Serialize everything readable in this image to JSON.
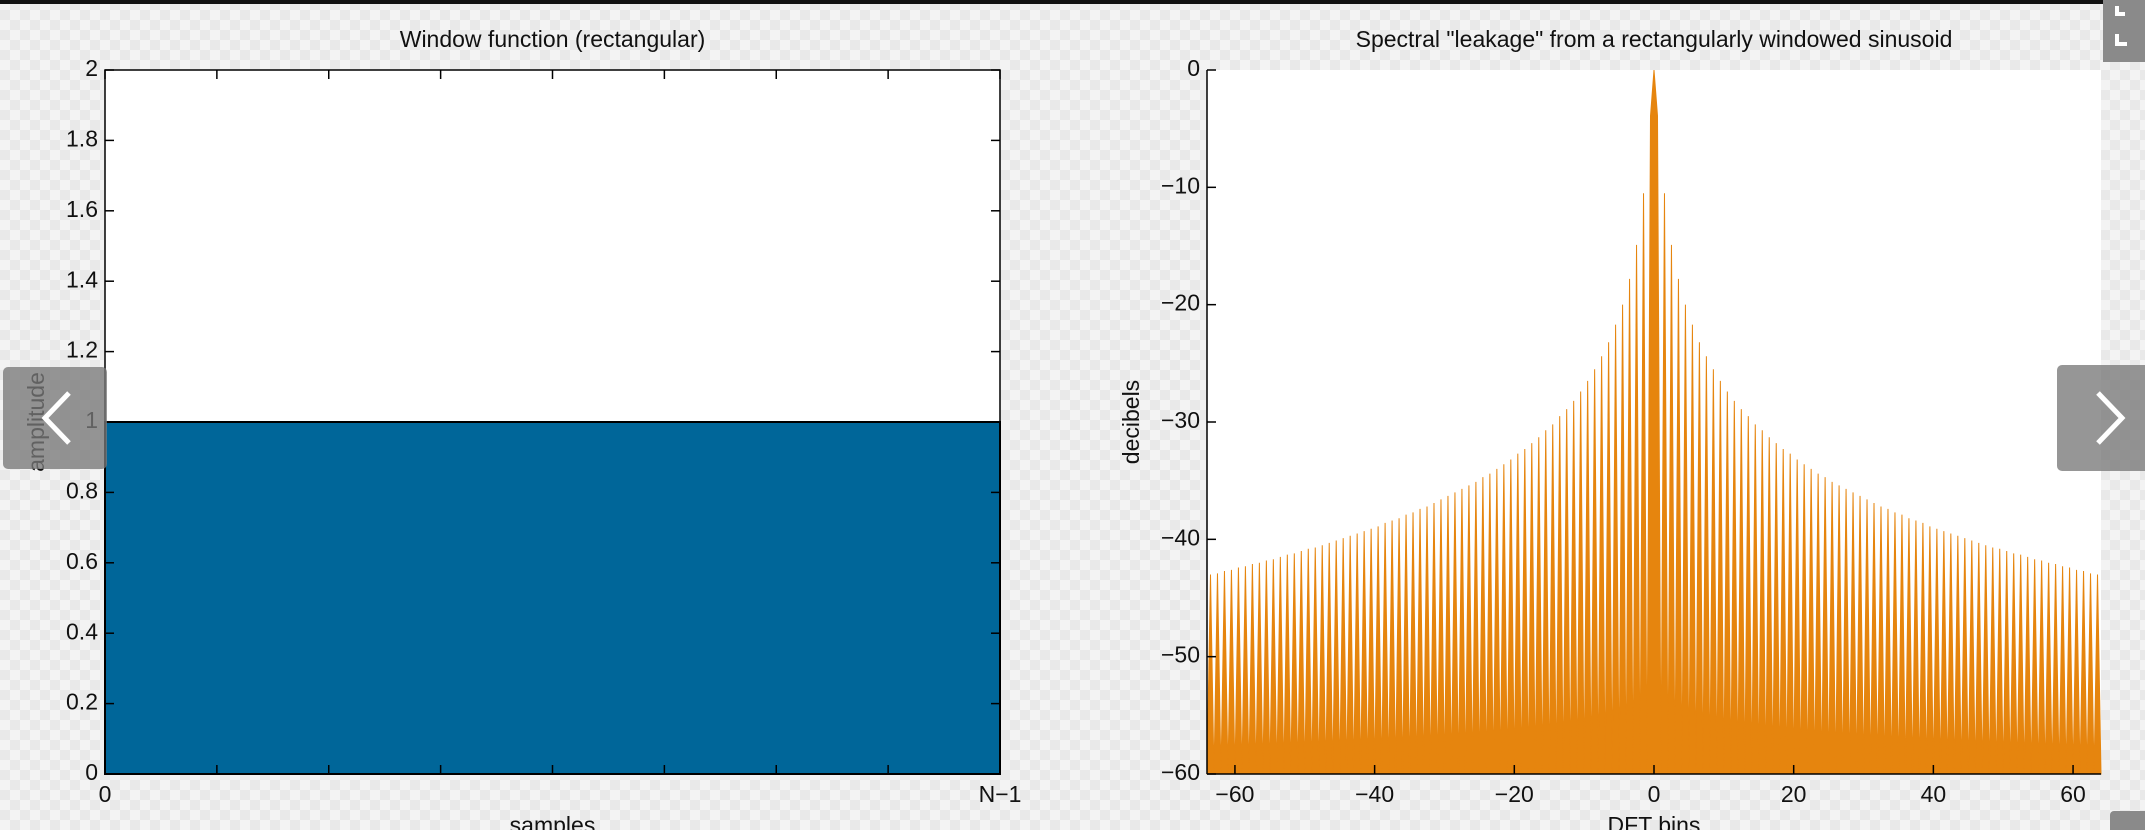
{
  "chart_data": [
    {
      "type": "area",
      "title": "Window function (rectangular)",
      "xlabel": "samples",
      "ylabel": "amplitude",
      "categories": [
        "0",
        null,
        null,
        null,
        null,
        null,
        null,
        null,
        "N−1"
      ],
      "values": [
        1,
        1,
        1,
        1,
        1,
        1,
        1,
        1,
        1
      ],
      "color": "#006699",
      "edgecolor": "#000000",
      "box": true,
      "ylim": [
        0,
        2
      ],
      "yticks": [
        0,
        0.2,
        0.4,
        0.6,
        0.8,
        1,
        1.2,
        1.4,
        1.6,
        1.8,
        2
      ]
    },
    {
      "type": "area",
      "title": "Spectral \"leakage\" from a rectangularly windowed sinusoid",
      "xlabel": "DFT bins",
      "ylabel": "decibels",
      "x": [
        -64,
        -63.5,
        -63,
        -62.5,
        -62,
        -61.5,
        -61,
        -60.5,
        -60,
        -59.5,
        -59,
        -58.5,
        -58,
        -57.5,
        -57,
        -56.5,
        -56,
        -55.5,
        -55,
        -54.5,
        -54,
        -53.5,
        -53,
        -52.5,
        -52,
        -51.5,
        -51,
        -50.5,
        -50,
        -49.5,
        -49,
        -48.5,
        -48,
        -47.5,
        -47,
        -46.5,
        -46,
        -45.5,
        -45,
        -44.5,
        -44,
        -43.5,
        -43,
        -42.5,
        -42,
        -41.5,
        -41,
        -40.5,
        -40,
        -39.5,
        -39,
        -38.5,
        -38,
        -37.5,
        -37,
        -36.5,
        -36,
        -35.5,
        -35,
        -34.5,
        -34,
        -33.5,
        -33,
        -32.5,
        -32,
        -31.5,
        -31,
        -30.5,
        -30,
        -29.5,
        -29,
        -28.5,
        -28,
        -27.5,
        -27,
        -26.5,
        -26,
        -25.5,
        -25,
        -24.5,
        -24,
        -23.5,
        -23,
        -22.5,
        -22,
        -21.5,
        -21,
        -20.5,
        -20,
        -19.5,
        -19,
        -18.5,
        -18,
        -17.5,
        -17,
        -16.5,
        -16,
        -15.5,
        -15,
        -14.5,
        -14,
        -13.5,
        -13,
        -12.5,
        -12,
        -11.5,
        -11,
        -10.5,
        -10,
        -9.5,
        -9,
        -8.5,
        -8,
        -7.5,
        -7,
        -6.5,
        -6,
        -5.5,
        -5,
        -4.5,
        -4,
        -3.5,
        -3,
        -2.5,
        -2,
        -1.5,
        -1,
        -0.5,
        0,
        0.5,
        1,
        1.5,
        2,
        2.5,
        3,
        3.5,
        4,
        4.5,
        5,
        5.5,
        6,
        6.5,
        7,
        7.5,
        8,
        8.5,
        9,
        9.5,
        10,
        10.5,
        11,
        11.5,
        12,
        12.5,
        13,
        13.5,
        14,
        14.5,
        15,
        15.5,
        16,
        16.5,
        17,
        17.5,
        18,
        18.5,
        19,
        19.5,
        20,
        20.5,
        21,
        21.5,
        22,
        22.5,
        23,
        23.5,
        24,
        24.5,
        25,
        25.5,
        26,
        26.5,
        27,
        27.5,
        28,
        28.5,
        29,
        29.5,
        30,
        30.5,
        31,
        31.5,
        32,
        32.5,
        33,
        33.5,
        34,
        34.5,
        35,
        35.5,
        36,
        36.5,
        37,
        37.5,
        38,
        38.5,
        39,
        39.5,
        40,
        40.5,
        41,
        41.5,
        42,
        42.5,
        43,
        43.5,
        44,
        44.5,
        45,
        45.5,
        46,
        46.5,
        47,
        47.5,
        48,
        48.5,
        49,
        49.5,
        50,
        50.5,
        51,
        51.5,
        52,
        52.5,
        53,
        53.5,
        54,
        54.5,
        55,
        55.5,
        56,
        56.5,
        57,
        57.5,
        58,
        58.5,
        59,
        59.5,
        60,
        60.5,
        61,
        61.5,
        62,
        62.5,
        63,
        63.5,
        64
      ],
      "values": [
        -60,
        -43.0,
        -60,
        -42.9,
        -60,
        -42.7,
        -60,
        -42.6,
        -60,
        -42.4,
        -60,
        -42.3,
        -60,
        -42.1,
        -60,
        -42.0,
        -60,
        -41.8,
        -60,
        -41.7,
        -60,
        -41.5,
        -60,
        -41.3,
        -60,
        -41.2,
        -60,
        -41.0,
        -60,
        -40.8,
        -60,
        -40.7,
        -60,
        -40.5,
        -60,
        -40.3,
        -60,
        -40.1,
        -60,
        -39.9,
        -60,
        -39.7,
        -60,
        -39.5,
        -60,
        -39.3,
        -60,
        -39.1,
        -60,
        -38.9,
        -60,
        -38.6,
        -60,
        -38.4,
        -60,
        -38.2,
        -60,
        -37.9,
        -60,
        -37.7,
        -60,
        -37.4,
        -60,
        -37.2,
        -60,
        -36.9,
        -60,
        -36.6,
        -60,
        -36.3,
        -60,
        -36.0,
        -60,
        -35.7,
        -60,
        -35.4,
        -60,
        -35.1,
        -60,
        -34.7,
        -60,
        -34.4,
        -60,
        -34.0,
        -60,
        -33.6,
        -60,
        -33.2,
        -60,
        -32.7,
        -60,
        -32.3,
        -60,
        -31.8,
        -60,
        -31.3,
        -60,
        -30.7,
        -60,
        -30.2,
        -60,
        -29.5,
        -60,
        -28.9,
        -60,
        -28.2,
        -60,
        -27.4,
        -60,
        -26.5,
        -60,
        -25.5,
        -60,
        -24.4,
        -60,
        -23.2,
        -60,
        -21.7,
        -60,
        -20.0,
        -60,
        -17.8,
        -60,
        -14.9,
        -60,
        -10.5,
        -60,
        -3.9,
        0,
        -3.9,
        -60,
        -10.5,
        -60,
        -14.9,
        -60,
        -17.8,
        -60,
        -20.0,
        -60,
        -21.7,
        -60,
        -23.2,
        -60,
        -24.4,
        -60,
        -25.5,
        -60,
        -26.5,
        -60,
        -27.4,
        -60,
        -28.2,
        -60,
        -28.9,
        -60,
        -29.5,
        -60,
        -30.2,
        -60,
        -30.7,
        -60,
        -31.3,
        -60,
        -31.8,
        -60,
        -32.3,
        -60,
        -32.7,
        -60,
        -33.2,
        -60,
        -33.6,
        -60,
        -34.0,
        -60,
        -34.4,
        -60,
        -34.7,
        -60,
        -35.1,
        -60,
        -35.4,
        -60,
        -35.7,
        -60,
        -36.0,
        -60,
        -36.3,
        -60,
        -36.6,
        -60,
        -36.9,
        -60,
        -37.2,
        -60,
        -37.4,
        -60,
        -37.7,
        -60,
        -37.9,
        -60,
        -38.2,
        -60,
        -38.4,
        -60,
        -38.6,
        -60,
        -38.9,
        -60,
        -39.1,
        -60,
        -39.3,
        -60,
        -39.5,
        -60,
        -39.7,
        -60,
        -39.9,
        -60,
        -40.1,
        -60,
        -40.3,
        -60,
        -40.5,
        -60,
        -40.7,
        -60,
        -40.8,
        -60,
        -41.0,
        -60,
        -41.2,
        -60,
        -41.3,
        -60,
        -41.5,
        -60,
        -41.7,
        -60,
        -41.8,
        -60,
        -42.0,
        -60,
        -42.1,
        -60,
        -42.3,
        -60,
        -42.4,
        -60,
        -42.6,
        -60,
        -42.7,
        -60,
        -42.9,
        -60,
        -43.0,
        -60
      ],
      "color": "#e6850e",
      "edgecolor": "#e6850e",
      "box": false,
      "xlim": [
        -64,
        64
      ],
      "xticks": [
        {
          "value": -60,
          "label": "−60"
        },
        {
          "value": -40,
          "label": "−40"
        },
        {
          "value": -20,
          "label": "−20"
        },
        0,
        20,
        40,
        60
      ],
      "ylim": [
        -60,
        0
      ],
      "yticks": [
        {
          "value": -60,
          "label": "−60"
        },
        {
          "value": -50,
          "label": "−50"
        },
        {
          "value": -40,
          "label": "−40"
        },
        {
          "value": -30,
          "label": "−30"
        },
        {
          "value": -20,
          "label": "−20"
        },
        {
          "value": -10,
          "label": "−10"
        },
        0
      ]
    }
  ]
}
